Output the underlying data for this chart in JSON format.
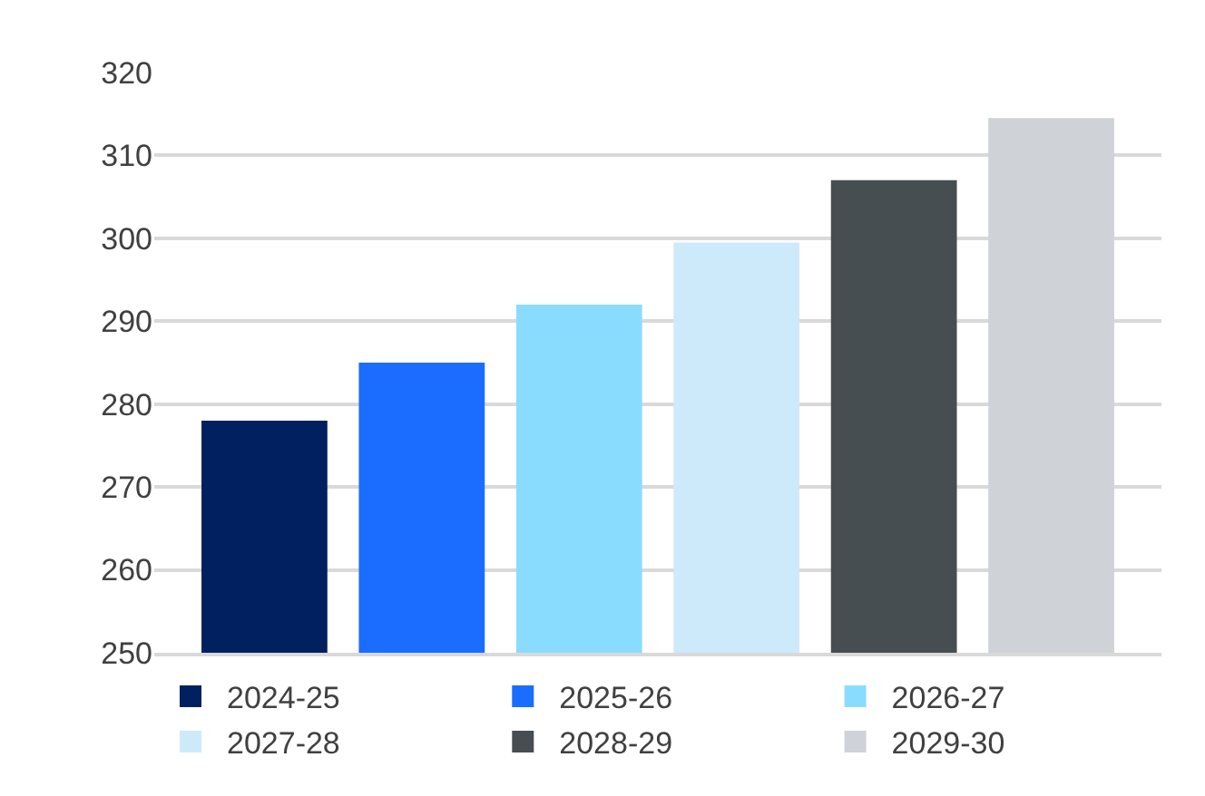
{
  "chart_data": {
    "type": "bar",
    "categories": [
      null,
      null,
      null,
      null,
      null,
      null
    ],
    "series": [
      {
        "name": "2024-25",
        "color": "#002060",
        "values": [
          278,
          null,
          null,
          null,
          null,
          null
        ]
      },
      {
        "name": "2025-26",
        "color": "#1a6dff",
        "values": [
          null,
          285,
          null,
          null,
          null,
          null
        ]
      },
      {
        "name": "2026-27",
        "color": "#8adcff",
        "values": [
          null,
          null,
          292,
          null,
          null,
          null
        ]
      },
      {
        "name": "2027-28",
        "color": "#cdeafb",
        "values": [
          null,
          null,
          null,
          299.5,
          null,
          null
        ]
      },
      {
        "name": "2028-29",
        "color": "#464e51",
        "values": [
          null,
          null,
          null,
          null,
          307,
          null
        ]
      },
      {
        "name": "2029-30",
        "color": "#cfd3d7",
        "values": [
          null,
          null,
          null,
          null,
          null,
          314.5
        ]
      }
    ],
    "ylim": [
      250,
      320
    ],
    "yticks": [
      250,
      260,
      270,
      280,
      290,
      300,
      310,
      320
    ],
    "grid": "y",
    "legend": "bottom"
  }
}
